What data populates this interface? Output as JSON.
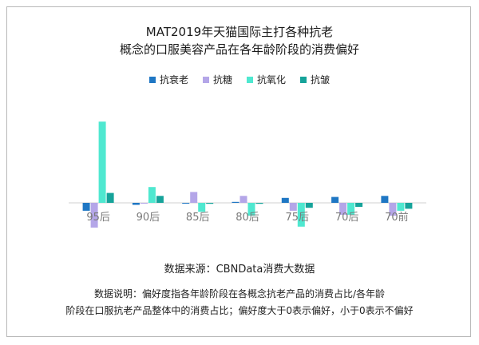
{
  "title_line1": "MAT2019年天猫国际主打各种抗老",
  "title_line2": "概念的口服美容产品在各年龄阶段的消费偏好",
  "source": "数据来源：CBNData消费大数据",
  "note_line1": "数据说明：偏好度指各年龄阶段在各概念抗老产品的消费占比/各年龄",
  "note_line2": "阶段在口服抗老产品整体中的消费占比；偏好度大于0表示偏好，小于0表示不偏好",
  "chart_data": {
    "type": "bar",
    "categories": [
      "95后",
      "90后",
      "85后",
      "80后",
      "75后",
      "70后",
      "70前"
    ],
    "series": [
      {
        "name": "抗衰老",
        "color": "#1f77c4",
        "values": [
          -0.08,
          -0.02,
          0.0,
          0.01,
          0.05,
          0.06,
          0.07
        ]
      },
      {
        "name": "抗糖",
        "color": "#b4a6e8",
        "values": [
          -0.25,
          0.0,
          0.11,
          0.07,
          -0.08,
          -0.12,
          -0.13
        ]
      },
      {
        "name": "抗氧化",
        "color": "#4fe8d0",
        "values": [
          0.82,
          0.16,
          -0.09,
          -0.13,
          -0.24,
          -0.12,
          -0.08
        ]
      },
      {
        "name": "抗皱",
        "color": "#16a39a",
        "values": [
          0.1,
          0.07,
          -0.01,
          -0.01,
          -0.05,
          -0.04,
          -0.06
        ]
      }
    ],
    "ylim": [
      -0.3,
      0.9
    ],
    "gridlines": false,
    "legend_position": "top-center"
  }
}
